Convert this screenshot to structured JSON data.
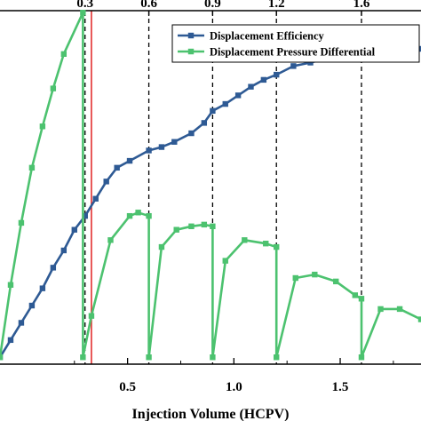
{
  "chart_data": {
    "type": "line",
    "xlabel": "Injection Volume (HCPV)",
    "xlim": [
      -0.1,
      1.88
    ],
    "ylim": [
      0,
      1
    ],
    "x_ticks": [
      "0.5",
      "1.0",
      "1.5"
    ],
    "x_tick_values": [
      0.5,
      1.0,
      1.5
    ],
    "top_ticks": [
      "0.3",
      "0.6",
      "0.9",
      "1.2",
      "1.6"
    ],
    "top_tick_values": [
      0.3,
      0.6,
      0.9,
      1.2,
      1.6
    ],
    "dashed_lines_x": [
      0.3,
      0.6,
      0.9,
      1.2,
      1.6
    ],
    "red_line_x": 0.33,
    "grid": false,
    "legend_position": "top-right",
    "series": [
      {
        "name": "Displacement Efficiency",
        "color": "#2e5a94",
        "marker": "square",
        "points": [
          [
            -0.1,
            0.02
          ],
          [
            -0.05,
            0.07
          ],
          [
            0.0,
            0.12
          ],
          [
            0.05,
            0.17
          ],
          [
            0.1,
            0.22
          ],
          [
            0.15,
            0.28
          ],
          [
            0.2,
            0.33
          ],
          [
            0.25,
            0.39
          ],
          [
            0.3,
            0.43
          ],
          [
            0.35,
            0.48
          ],
          [
            0.4,
            0.53
          ],
          [
            0.45,
            0.57
          ],
          [
            0.51,
            0.59
          ],
          [
            0.6,
            0.62
          ],
          [
            0.66,
            0.63
          ],
          [
            0.72,
            0.645
          ],
          [
            0.8,
            0.67
          ],
          [
            0.86,
            0.7
          ],
          [
            0.9,
            0.735
          ],
          [
            0.96,
            0.755
          ],
          [
            1.02,
            0.78
          ],
          [
            1.08,
            0.805
          ],
          [
            1.14,
            0.825
          ],
          [
            1.2,
            0.84
          ],
          [
            1.28,
            0.865
          ],
          [
            1.36,
            0.875
          ],
          [
            1.44,
            0.887
          ],
          [
            1.5,
            0.89
          ],
          [
            1.57,
            0.895
          ],
          [
            1.6,
            0.9
          ],
          [
            1.7,
            0.91
          ],
          [
            1.8,
            0.915
          ],
          [
            1.88,
            0.915
          ]
        ]
      },
      {
        "name": "Displacement Pressure Differential",
        "color": "#4cc26f",
        "marker": "square",
        "points": [
          [
            -0.1,
            0.02
          ],
          [
            -0.05,
            0.23
          ],
          [
            0.0,
            0.41
          ],
          [
            0.05,
            0.57
          ],
          [
            0.1,
            0.69
          ],
          [
            0.15,
            0.8
          ],
          [
            0.2,
            0.9
          ],
          [
            0.29,
            1.02
          ],
          [
            0.29,
            0.02
          ],
          [
            0.33,
            0.14
          ],
          [
            0.42,
            0.36
          ],
          [
            0.51,
            0.43
          ],
          [
            0.55,
            0.44
          ],
          [
            0.6,
            0.43
          ],
          [
            0.6,
            0.02
          ],
          [
            0.66,
            0.34
          ],
          [
            0.73,
            0.39
          ],
          [
            0.8,
            0.4
          ],
          [
            0.86,
            0.405
          ],
          [
            0.9,
            0.4
          ],
          [
            0.9,
            0.02
          ],
          [
            0.96,
            0.3
          ],
          [
            1.05,
            0.36
          ],
          [
            1.15,
            0.35
          ],
          [
            1.2,
            0.34
          ],
          [
            1.2,
            0.02
          ],
          [
            1.29,
            0.25
          ],
          [
            1.38,
            0.26
          ],
          [
            1.48,
            0.24
          ],
          [
            1.57,
            0.2
          ],
          [
            1.6,
            0.19
          ],
          [
            1.6,
            0.02
          ],
          [
            1.69,
            0.16
          ],
          [
            1.78,
            0.16
          ],
          [
            1.88,
            0.13
          ]
        ]
      }
    ]
  }
}
